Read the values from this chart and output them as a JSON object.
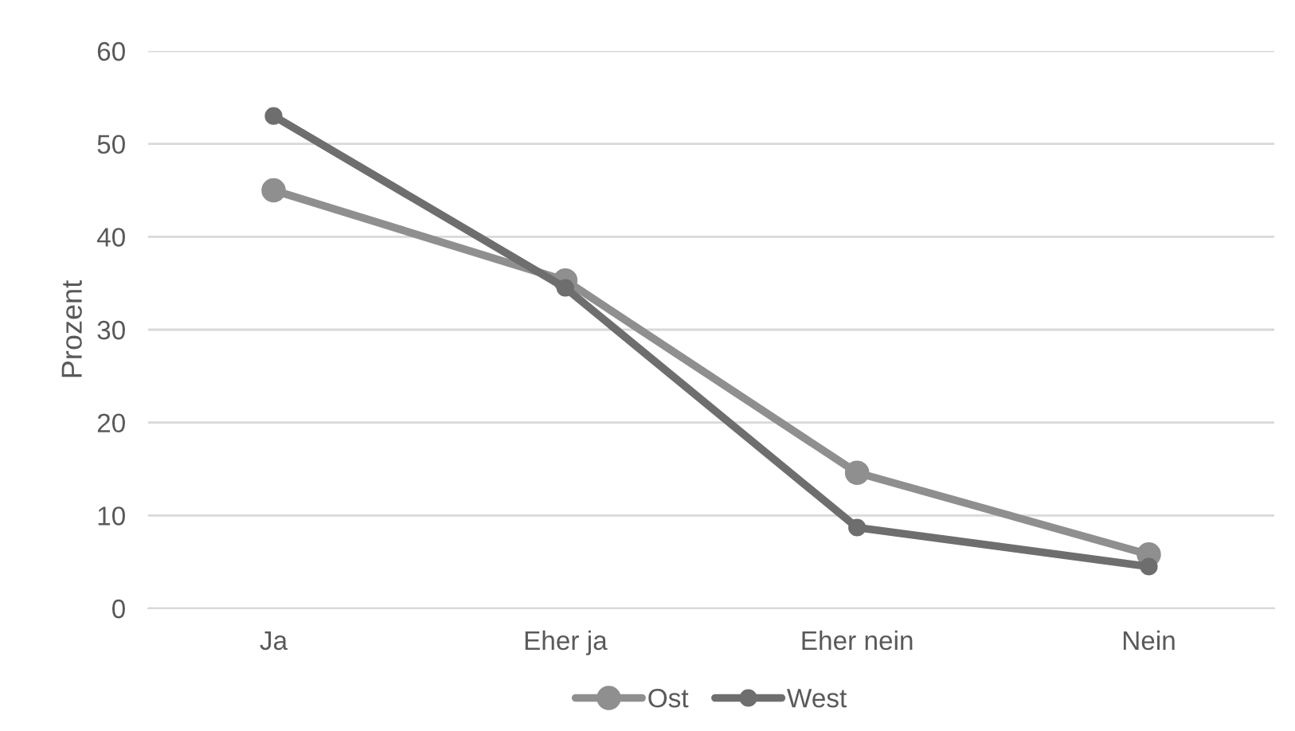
{
  "chart_data": {
    "type": "line",
    "ylabel": "Prozent",
    "categories": [
      "Ja",
      "Eher ja",
      "Eher nein",
      "Nein"
    ],
    "series": [
      {
        "name": "Ost",
        "color": "#8f8f8f",
        "values": [
          45,
          35.3,
          14.6,
          5.8
        ]
      },
      {
        "name": "West",
        "color": "#6e6e6e",
        "values": [
          53,
          34.5,
          8.7,
          4.5
        ]
      }
    ],
    "ylim": [
      0,
      60
    ],
    "yticks": [
      0,
      10,
      20,
      30,
      40,
      50,
      60
    ],
    "grid": "y",
    "legend": "bottom",
    "marker": "circle",
    "line_style": "solid"
  }
}
